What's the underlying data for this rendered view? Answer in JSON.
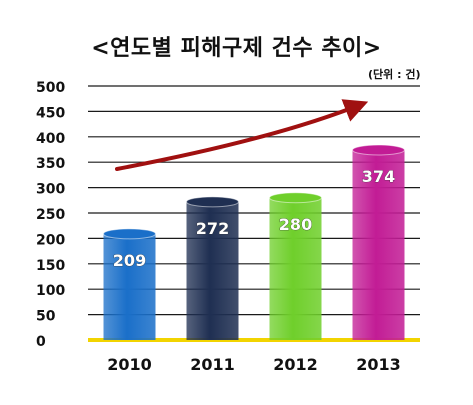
{
  "chart_data": {
    "type": "bar",
    "title": "<연도별 피해구제 건수 추이>",
    "unit_label": "(단위 : 건)",
    "categories": [
      "2010",
      "2011",
      "2012",
      "2013"
    ],
    "values": [
      209,
      272,
      280,
      374
    ],
    "ylim": [
      0,
      500
    ],
    "yticks": [
      "500",
      "450",
      "400",
      "350",
      "300",
      "250",
      "200",
      "150",
      "100",
      "50",
      "0"
    ],
    "grid": true,
    "legend": "none",
    "trend_arrow": "increasing",
    "colors": {
      "bars": [
        "#1a6fc9",
        "#1f2f52",
        "#6fcf2b",
        "#c21c95"
      ],
      "arrow": "#a01010",
      "baseline": "#f2d400",
      "grid": "#1a1a1a"
    }
  }
}
